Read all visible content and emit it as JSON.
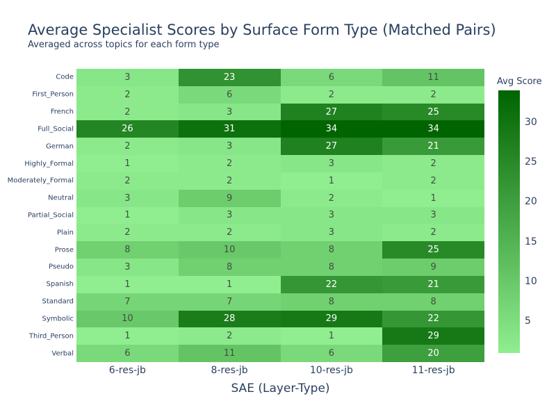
{
  "chart_data": {
    "type": "heatmap",
    "title": "Average Specialist Scores by Surface Form Type (Matched Pairs)",
    "subtitle": "Averaged across topics for each form type",
    "xlabel": "SAE (Layer-Type)",
    "ylabel": "",
    "x_categories": [
      "6-res-jb",
      "8-res-jb",
      "10-res-jb",
      "11-res-jb"
    ],
    "y_categories": [
      "Code",
      "First_Person",
      "French",
      "Full_Social",
      "German",
      "Highly_Formal",
      "Moderately_Formal",
      "Neutral",
      "Partial_Social",
      "Plain",
      "Prose",
      "Pseudo",
      "Spanish",
      "Standard",
      "Symbolic",
      "Third_Person",
      "Verbal"
    ],
    "values": [
      [
        3,
        23,
        6,
        11
      ],
      [
        2,
        6,
        2,
        2
      ],
      [
        2,
        3,
        27,
        25
      ],
      [
        26,
        31,
        34,
        34
      ],
      [
        2,
        3,
        27,
        21
      ],
      [
        1,
        2,
        3,
        2
      ],
      [
        2,
        2,
        1,
        2
      ],
      [
        3,
        9,
        2,
        1
      ],
      [
        1,
        3,
        3,
        3
      ],
      [
        2,
        2,
        3,
        2
      ],
      [
        8,
        10,
        8,
        25
      ],
      [
        3,
        8,
        8,
        9
      ],
      [
        1,
        1,
        22,
        21
      ],
      [
        7,
        7,
        8,
        8
      ],
      [
        10,
        28,
        29,
        22
      ],
      [
        1,
        2,
        1,
        29
      ],
      [
        6,
        11,
        6,
        20
      ]
    ],
    "colorbar": {
      "title": "Avg Score",
      "ticks": [
        30,
        25,
        20,
        15,
        10,
        5
      ],
      "range": [
        1,
        34
      ]
    },
    "grid": false,
    "legend_position": "right"
  },
  "colors": {
    "background": "#ffffff",
    "text": "#2a3f5f",
    "color_low": "#90ee90",
    "color_high": "#006400",
    "cell_text_dark": "#414f41",
    "cell_text_light": "#ffffff"
  }
}
